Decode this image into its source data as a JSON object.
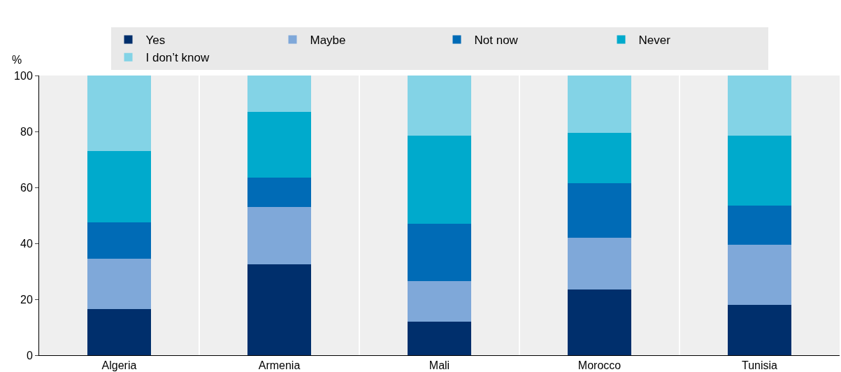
{
  "chart_data": {
    "type": "bar",
    "stacked": true,
    "ylabel": "%",
    "categories": [
      "Algeria",
      "Armenia",
      "Mali",
      "Morocco",
      "Tunisia"
    ],
    "series": [
      {
        "name": "Yes",
        "color": "#002f6c",
        "values": [
          16.5,
          32.5,
          12,
          23.5,
          18
        ]
      },
      {
        "name": "Maybe",
        "color": "#7fa8d9",
        "values": [
          18,
          20.5,
          14.5,
          18.5,
          21.5
        ]
      },
      {
        "name": "Not now",
        "color": "#006bb6",
        "values": [
          13,
          10.5,
          20.5,
          19.5,
          14
        ]
      },
      {
        "name": "Never",
        "color": "#00aacc",
        "values": [
          25.5,
          23.5,
          31.5,
          18,
          25
        ]
      },
      {
        "name": "I don’t know",
        "color": "#83d3e6",
        "values": [
          27,
          13,
          21.5,
          20.5,
          21.5
        ]
      }
    ],
    "ylim": [
      0,
      100
    ],
    "yticks": [
      0,
      20,
      40,
      60,
      80,
      100
    ],
    "grid": "x",
    "legend": "top"
  }
}
